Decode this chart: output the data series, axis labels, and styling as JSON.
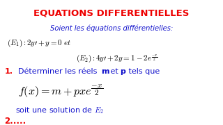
{
  "title": "EQUATIONS DIFFERENTIELLES",
  "title_color": "#EE0000",
  "subtitle": "Soient les équations différentielles:",
  "subtitle_color": "#1111CC",
  "eq1_color": "#000000",
  "eq2_color": "#000000",
  "line1_num_color": "#EE0000",
  "line1_text_color": "#1111CC",
  "formula_color": "#000000",
  "line2_color": "#1111CC",
  "line3_color": "#EE0000",
  "bg_color": "#FFFFFF"
}
